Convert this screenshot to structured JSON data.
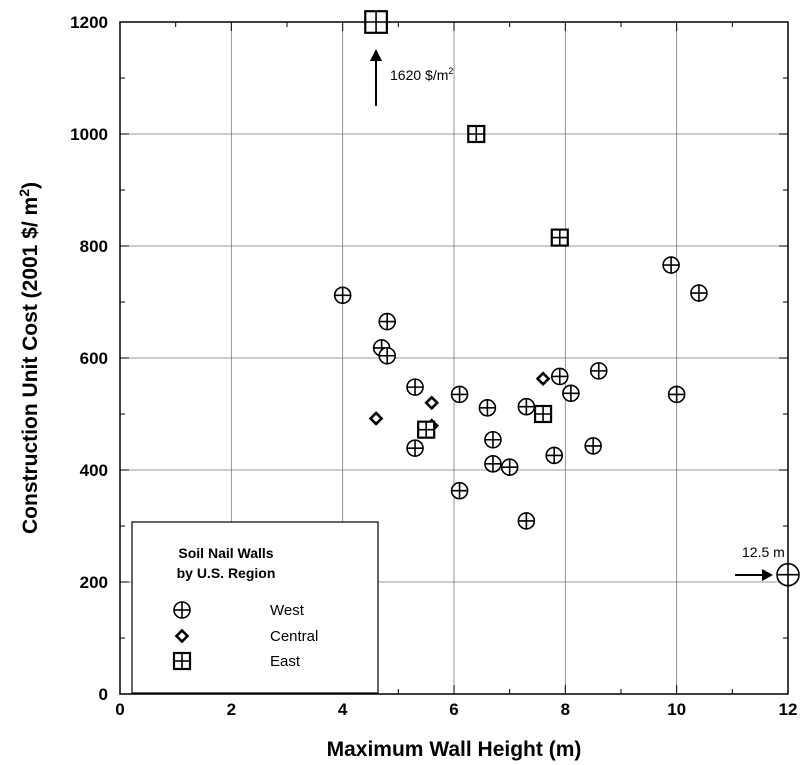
{
  "chart_data": {
    "type": "scatter",
    "xlabel": "Maximum Wall Height (m)",
    "ylabel_main": "Construction Unit Cost (2001 $/ m",
    "ylabel_sup": "2",
    "ylabel_end": ")",
    "xlim": [
      0,
      12
    ],
    "ylim": [
      0,
      1200
    ],
    "xticks": [
      "0",
      "2",
      "4",
      "6",
      "8",
      "10",
      "12"
    ],
    "yticks": [
      "0",
      "200",
      "400",
      "600",
      "800",
      "1000",
      "1200"
    ],
    "grid": true,
    "legend": {
      "title_line1": "Soil Nail Walls",
      "title_line2": "by U.S. Region",
      "placement": "bottom-left"
    },
    "series": [
      {
        "name": "West",
        "marker": "circle-plus",
        "points": [
          [
            4.0,
            712
          ],
          [
            4.7,
            618
          ],
          [
            4.8,
            604
          ],
          [
            4.8,
            665
          ],
          [
            5.3,
            548
          ],
          [
            5.3,
            439
          ],
          [
            6.1,
            535
          ],
          [
            6.1,
            363
          ],
          [
            6.6,
            511
          ],
          [
            6.7,
            454
          ],
          [
            6.7,
            411
          ],
          [
            7.0,
            405
          ],
          [
            7.3,
            513
          ],
          [
            7.3,
            309
          ],
          [
            7.8,
            426
          ],
          [
            7.9,
            567
          ],
          [
            8.1,
            537
          ],
          [
            8.5,
            443
          ],
          [
            8.6,
            577
          ],
          [
            9.9,
            766
          ],
          [
            10.0,
            535
          ],
          [
            10.4,
            716
          ]
        ]
      },
      {
        "name": "Central",
        "marker": "diamond",
        "points": [
          [
            4.6,
            492
          ],
          [
            5.6,
            520
          ],
          [
            5.6,
            479
          ],
          [
            7.6,
            563
          ]
        ]
      },
      {
        "name": "East",
        "marker": "square-plus",
        "points": [
          [
            4.6,
            1200
          ],
          [
            5.5,
            472
          ],
          [
            6.4,
            1000
          ],
          [
            7.6,
            500
          ],
          [
            7.9,
            815
          ]
        ]
      }
    ],
    "annotations": [
      {
        "text": "1620 $/m",
        "sup": "2"
      },
      {
        "text": "12.5 m"
      }
    ],
    "offscale_markers": [
      {
        "series": "East",
        "x": 4.6,
        "y": 1200
      },
      {
        "series": "West",
        "x": 12,
        "y": 213
      }
    ]
  }
}
